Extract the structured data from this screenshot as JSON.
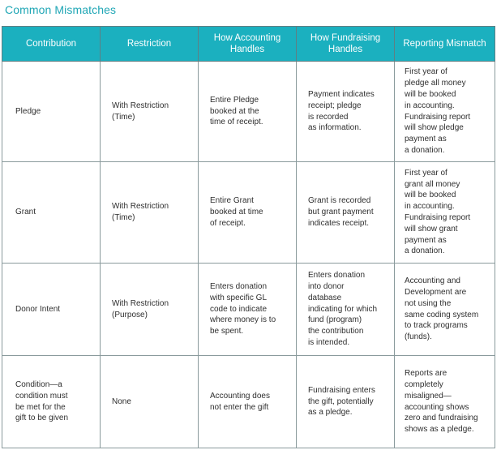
{
  "title": "Common Mismatches",
  "table": {
    "headers": [
      "Contribution",
      "Restriction",
      "How Accounting\nHandles",
      "How Fundraising\nHandles",
      "Reporting Mismatch"
    ],
    "rows": [
      {
        "contribution": "Pledge",
        "restriction": "With Restriction\n(Time)",
        "accounting": "Entire Pledge\nbooked at the\ntime of receipt.",
        "fundraising": "Payment indicates\nreceipt; pledge\nis recorded\nas information.",
        "mismatch": "First year of\npledge all money\nwill be booked\nin accounting.\nFundraising report\nwill show pledge\npayment as\na donation."
      },
      {
        "contribution": "Grant",
        "restriction": "With Restriction\n(Time)",
        "accounting": "Entire Grant\nbooked at time\nof receipt.",
        "fundraising": "Grant is recorded\nbut grant payment\nindicates receipt.",
        "mismatch": "First year of\ngrant all money\nwill be booked\nin accounting.\nFundraising report\nwill show grant\npayment as\na donation."
      },
      {
        "contribution": "Donor Intent",
        "restriction": "With Restriction\n(Purpose)",
        "accounting": "Enters donation\nwith specific GL\ncode to indicate\nwhere money is to\nbe spent.",
        "fundraising": "Enters donation\ninto donor\ndatabase\nindicating for which\nfund (program)\nthe contribution\nis intended.",
        "mismatch": "Accounting and\nDevelopment are\nnot using the\nsame coding system\nto track programs\n(funds)."
      },
      {
        "contribution": "Condition—a\ncondition must\nbe met for the\ngift to be given",
        "restriction": "None",
        "accounting": "Accounting does\nnot enter the gift",
        "fundraising": "Fundraising enters\nthe gift, potentially\nas a pledge.",
        "mismatch": "Reports are\ncompletely\nmisaligned—\naccounting shows\nzero and fundraising\nshows as a pledge."
      }
    ]
  }
}
